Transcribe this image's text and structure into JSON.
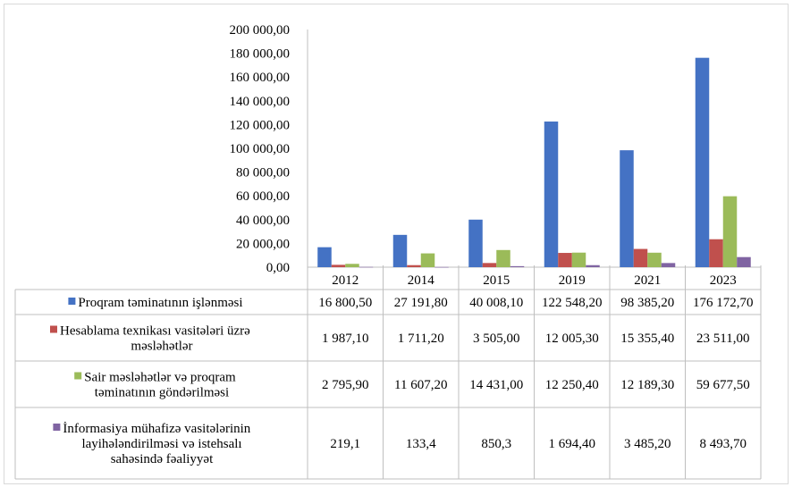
{
  "chart_data": {
    "type": "bar",
    "title": "",
    "xlabel": "",
    "ylabel": "",
    "categories": [
      "2012",
      "2014",
      "2015",
      "2019",
      "2021",
      "2023"
    ],
    "ylim": [
      0,
      200000
    ],
    "y_ticks": [
      0,
      20000,
      40000,
      60000,
      80000,
      100000,
      120000,
      140000,
      160000,
      180000,
      200000
    ],
    "y_tick_labels": [
      "0,00",
      "20 000,00",
      "40 000,00",
      "60 000,00",
      "80 000,00",
      "100 000,00",
      "120 000,00",
      "140 000,00",
      "160 000,00",
      "180 000,00",
      "200 000,00"
    ],
    "grid": false,
    "legend_placement": "data-table",
    "series": [
      {
        "name_lines": [
          "Proqram təminatının işlənməsi"
        ],
        "color": "#4472C4",
        "values": [
          16800.5,
          27191.8,
          40008.1,
          122548.2,
          98385.2,
          176172.7
        ],
        "labels": [
          "16 800,50",
          "27 191,80",
          "40 008,10",
          "122 548,20",
          "98 385,20",
          "176 172,70"
        ]
      },
      {
        "name_lines": [
          "Hesablama texnikası vasitələri üzrə",
          "məsləhətlər"
        ],
        "color": "#C0504D",
        "values": [
          1987.1,
          1711.2,
          3505.0,
          12005.3,
          15355.4,
          23511.0
        ],
        "labels": [
          "1 987,10",
          "1 711,20",
          "3 505,00",
          "12 005,30",
          "15 355,40",
          "23 511,00"
        ]
      },
      {
        "name_lines": [
          "Sair məsləhətlər və proqram",
          "təminatının göndərilməsi"
        ],
        "color": "#9BBB59",
        "values": [
          2795.9,
          11607.2,
          14431.0,
          12250.4,
          12189.3,
          59677.5
        ],
        "labels": [
          "2 795,90",
          "11 607,20",
          "14 431,00",
          "12 250,40",
          "12 189,30",
          "59 677,50"
        ]
      },
      {
        "name_lines": [
          "İnformasiya mühafizə vasitələrinin",
          "layihələndirilməsi və istehsalı",
          "sahəsində fəaliyyət"
        ],
        "color": "#8064A2",
        "values": [
          219.1,
          133.4,
          850.3,
          1694.4,
          3485.2,
          8493.7
        ],
        "labels": [
          "219,1",
          "133,4",
          "850,3",
          "1 694,40",
          "3 485,20",
          "8 493,70"
        ]
      }
    ]
  }
}
